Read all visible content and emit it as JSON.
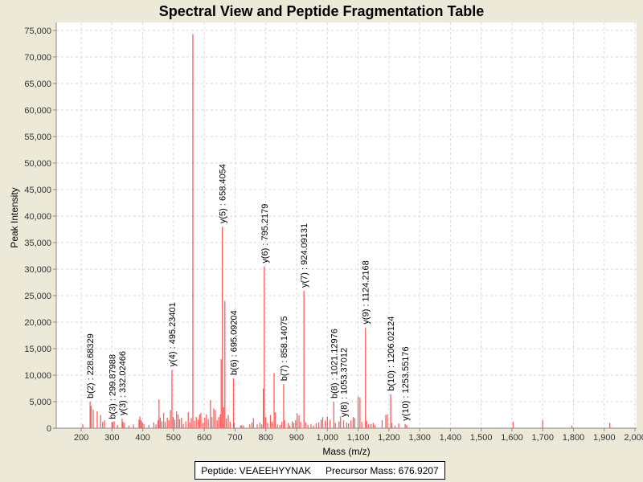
{
  "chart_data": {
    "type": "bar",
    "title": "Spectral View and Peptide Fragmentation Table",
    "xlabel": "Mass (m/z)",
    "ylabel": "Peak Intensity",
    "xlim": [
      119,
      2005
    ],
    "ylim": [
      0,
      76500
    ],
    "grid": true,
    "xticks": [
      200,
      300,
      400,
      500,
      600,
      700,
      800,
      900,
      1000,
      1100,
      1200,
      1300,
      1400,
      1500,
      1600,
      1700,
      1800,
      1900,
      2000
    ],
    "xtick_labels": [
      "200",
      "300",
      "400",
      "500",
      "600",
      "700",
      "800",
      "900",
      "1,000",
      "1,100",
      "1,200",
      "1,300",
      "1,400",
      "1,500",
      "1,600",
      "1,700",
      "1,800",
      "1,900",
      "2,000"
    ],
    "yticks": [
      0,
      5000,
      10000,
      15000,
      20000,
      25000,
      30000,
      35000,
      40000,
      45000,
      50000,
      55000,
      60000,
      65000,
      70000,
      75000
    ],
    "ytick_labels": [
      "0",
      "5,000",
      "10,000",
      "15,000",
      "20,000",
      "25,000",
      "30,000",
      "35,000",
      "40,000",
      "45,000",
      "50,000",
      "55,000",
      "60,000",
      "65,000",
      "70,000",
      "75,000"
    ],
    "peaks": [
      [
        205,
        700
      ],
      [
        229,
        5000
      ],
      [
        232,
        4200
      ],
      [
        239,
        3500
      ],
      [
        252,
        3200
      ],
      [
        263,
        2500
      ],
      [
        270,
        1200
      ],
      [
        276,
        1500
      ],
      [
        300,
        1100
      ],
      [
        302,
        1200
      ],
      [
        307,
        1300
      ],
      [
        318,
        600
      ],
      [
        333,
        1800
      ],
      [
        336,
        1200
      ],
      [
        341,
        1000
      ],
      [
        355,
        500
      ],
      [
        370,
        700
      ],
      [
        388,
        1600
      ],
      [
        391,
        2200
      ],
      [
        395,
        1500
      ],
      [
        399,
        1100
      ],
      [
        404,
        800
      ],
      [
        420,
        600
      ],
      [
        436,
        1100
      ],
      [
        443,
        700
      ],
      [
        450,
        1500
      ],
      [
        453,
        5400
      ],
      [
        457,
        2000
      ],
      [
        462,
        1300
      ],
      [
        468,
        2900
      ],
      [
        473,
        1200
      ],
      [
        480,
        2000
      ],
      [
        485,
        1500
      ],
      [
        490,
        3400
      ],
      [
        495,
        11000
      ],
      [
        499,
        2100
      ],
      [
        504,
        1600
      ],
      [
        510,
        3200
      ],
      [
        515,
        2600
      ],
      [
        520,
        1700
      ],
      [
        526,
        2000
      ],
      [
        532,
        800
      ],
      [
        540,
        1300
      ],
      [
        548,
        3000
      ],
      [
        553,
        1100
      ],
      [
        558,
        1900
      ],
      [
        563,
        74300
      ],
      [
        568,
        1400
      ],
      [
        574,
        2100
      ],
      [
        580,
        1600
      ],
      [
        585,
        2600
      ],
      [
        589,
        2900
      ],
      [
        596,
        1000
      ],
      [
        602,
        2000
      ],
      [
        607,
        2600
      ],
      [
        613,
        1700
      ],
      [
        620,
        5300
      ],
      [
        625,
        2100
      ],
      [
        631,
        3700
      ],
      [
        636,
        3400
      ],
      [
        642,
        1500
      ],
      [
        647,
        2100
      ],
      [
        652,
        2600
      ],
      [
        655,
        13000
      ],
      [
        659,
        38000
      ],
      [
        663,
        4000
      ],
      [
        667,
        24000
      ],
      [
        672,
        1800
      ],
      [
        678,
        2500
      ],
      [
        684,
        1200
      ],
      [
        695,
        9400
      ],
      [
        697,
        1000
      ],
      [
        718,
        500
      ],
      [
        722,
        600
      ],
      [
        728,
        500
      ],
      [
        748,
        700
      ],
      [
        755,
        1100
      ],
      [
        760,
        1900
      ],
      [
        772,
        700
      ],
      [
        781,
        1100
      ],
      [
        787,
        700
      ],
      [
        792,
        7500
      ],
      [
        795,
        30500
      ],
      [
        800,
        2100
      ],
      [
        806,
        1000
      ],
      [
        815,
        2500
      ],
      [
        820,
        1200
      ],
      [
        827,
        10400
      ],
      [
        831,
        3000
      ],
      [
        838,
        700
      ],
      [
        846,
        600
      ],
      [
        852,
        1200
      ],
      [
        858,
        8300
      ],
      [
        861,
        1500
      ],
      [
        873,
        1000
      ],
      [
        878,
        500
      ],
      [
        886,
        1300
      ],
      [
        891,
        1000
      ],
      [
        897,
        1500
      ],
      [
        902,
        2800
      ],
      [
        908,
        2400
      ],
      [
        913,
        1200
      ],
      [
        924,
        25900
      ],
      [
        930,
        1100
      ],
      [
        937,
        600
      ],
      [
        947,
        800
      ],
      [
        955,
        500
      ],
      [
        964,
        900
      ],
      [
        972,
        1100
      ],
      [
        980,
        1600
      ],
      [
        985,
        2100
      ],
      [
        993,
        1400
      ],
      [
        1000,
        2200
      ],
      [
        1009,
        1600
      ],
      [
        1021,
        5000
      ],
      [
        1026,
        1000
      ],
      [
        1038,
        1300
      ],
      [
        1043,
        2200
      ],
      [
        1053,
        1500
      ],
      [
        1063,
        1100
      ],
      [
        1069,
        900
      ],
      [
        1077,
        1500
      ],
      [
        1084,
        2100
      ],
      [
        1089,
        1900
      ],
      [
        1100,
        6000
      ],
      [
        1106,
        5800
      ],
      [
        1112,
        1200
      ],
      [
        1124,
        19000
      ],
      [
        1128,
        1400
      ],
      [
        1134,
        700
      ],
      [
        1142,
        800
      ],
      [
        1149,
        1000
      ],
      [
        1155,
        600
      ],
      [
        1178,
        1500
      ],
      [
        1190,
        2500
      ],
      [
        1195,
        2600
      ],
      [
        1206,
        6400
      ],
      [
        1210,
        1000
      ],
      [
        1220,
        500
      ],
      [
        1232,
        900
      ],
      [
        1253,
        800
      ],
      [
        1258,
        600
      ],
      [
        1604,
        1200
      ],
      [
        1700,
        1500
      ],
      [
        1795,
        500
      ],
      [
        1918,
        1000
      ]
    ],
    "annotations": [
      {
        "label": "b(2) : 228.68329",
        "mz": 229,
        "intensity": 5000
      },
      {
        "label": "b(3) : 299.87988",
        "mz": 300,
        "intensity": 1100
      },
      {
        "label": "y(3) : 332.02466",
        "mz": 333,
        "intensity": 1800
      },
      {
        "label": "y(4) : 495.23401",
        "mz": 495,
        "intensity": 11000
      },
      {
        "label": "y(5) : 658.4054",
        "mz": 659,
        "intensity": 38000
      },
      {
        "label": "b(6) : 695.09204",
        "mz": 695,
        "intensity": 9400
      },
      {
        "label": "y(6) : 795.2179",
        "mz": 795,
        "intensity": 30500
      },
      {
        "label": "b(7) : 858.14075",
        "mz": 858,
        "intensity": 8300
      },
      {
        "label": "y(7) : 924.09131",
        "mz": 924,
        "intensity": 25900
      },
      {
        "label": "b(8) : 1021.12976",
        "mz": 1021,
        "intensity": 5000
      },
      {
        "label": "y(8) : 1053.37012",
        "mz": 1053,
        "intensity": 1500
      },
      {
        "label": "y(9) : 1124.2168",
        "mz": 1124,
        "intensity": 19000
      },
      {
        "label": "b(10) : 1206.02124",
        "mz": 1206,
        "intensity": 6400
      },
      {
        "label": "y(10) : 1253.55176",
        "mz": 1253,
        "intensity": 800
      }
    ],
    "peak_color": "#FF3333"
  },
  "legend": {
    "peptide": "Peptide: VEAEEHYYNAK",
    "precursor": "Precursor Mass: 676.9207"
  }
}
